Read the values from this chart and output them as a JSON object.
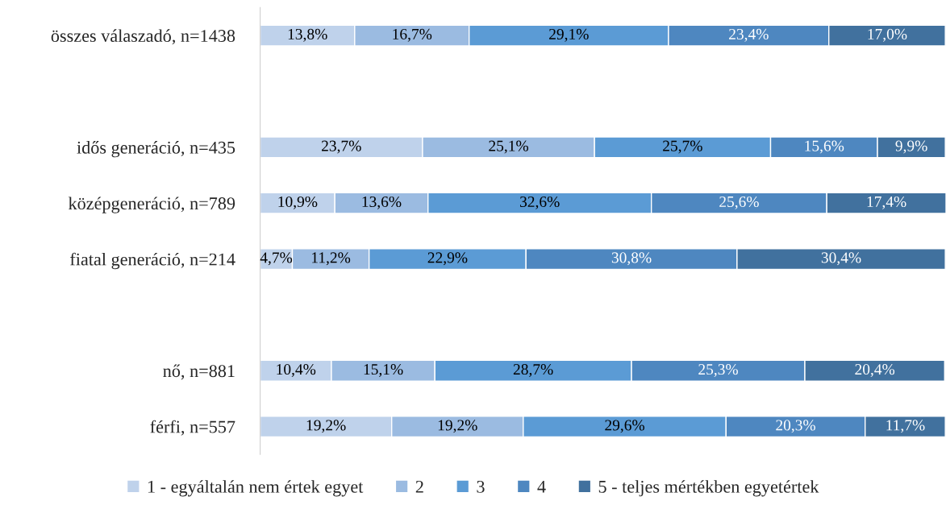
{
  "chart_data": {
    "type": "bar",
    "orientation": "horizontal",
    "stacked": true,
    "legend": "bottom",
    "categories": [
      "összes válaszadó, n=1438",
      null,
      "idős generáció, n=435",
      "középgeneráció, n=789",
      "fiatal generáció, n=214",
      null,
      "nő, n=881",
      "férfi, n=557"
    ],
    "series": [
      {
        "name": "1 - egyáltalán nem értek egyet",
        "color": "#bfd2eb",
        "values": [
          13.8,
          null,
          23.7,
          10.9,
          4.7,
          null,
          10.4,
          19.2
        ],
        "value_labels": [
          "13,8%",
          null,
          "23,7%",
          "10,9%",
          "4,7%",
          null,
          "10,4%",
          "19,2%"
        ]
      },
      {
        "name": "2",
        "color": "#9bbbe1",
        "values": [
          16.7,
          null,
          25.1,
          13.6,
          11.2,
          null,
          15.1,
          19.2
        ],
        "value_labels": [
          "16,7%",
          null,
          "25,1%",
          "13,6%",
          "11,2%",
          null,
          "15,1%",
          "19,2%"
        ]
      },
      {
        "name": "3",
        "color": "#5b9bd5",
        "values": [
          29.1,
          null,
          25.7,
          32.6,
          22.9,
          null,
          28.7,
          29.6
        ],
        "value_labels": [
          "29,1%",
          null,
          "25,7%",
          "32,6%",
          "22,9%",
          null,
          "28,7%",
          "29,6%"
        ]
      },
      {
        "name": "4",
        "color": "#4e87c0",
        "values": [
          23.4,
          null,
          15.6,
          25.6,
          30.8,
          null,
          25.3,
          20.3
        ],
        "value_labels": [
          "23,4%",
          null,
          "15,6%",
          "25,6%",
          "30,8%",
          null,
          "25,3%",
          "20,3%"
        ]
      },
      {
        "name": "5 - teljes mértékben egyetértek",
        "color": "#41719e",
        "values": [
          17.0,
          null,
          9.9,
          17.4,
          30.4,
          null,
          20.4,
          11.7
        ],
        "value_labels": [
          "17,0%",
          null,
          "9,9%",
          "17,4%",
          "30,4%",
          null,
          "20,4%",
          "11,7%"
        ]
      }
    ]
  }
}
